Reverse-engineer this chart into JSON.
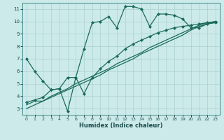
{
  "title": "",
  "xlabel": "Humidex (Indice chaleur)",
  "bg_color": "#cceaea",
  "grid_color": "#aacfcf",
  "line_color": "#1a6b5a",
  "xlim": [
    -0.5,
    23.5
  ],
  "ylim": [
    2.5,
    11.5
  ],
  "xticks": [
    0,
    1,
    2,
    3,
    4,
    5,
    6,
    7,
    8,
    9,
    10,
    11,
    12,
    13,
    14,
    15,
    16,
    17,
    18,
    19,
    20,
    21,
    22,
    23
  ],
  "yticks": [
    3,
    4,
    5,
    6,
    7,
    8,
    9,
    10,
    11
  ],
  "s1_x": [
    0,
    1,
    2,
    3,
    4,
    5,
    6,
    7,
    8,
    9,
    10,
    11,
    12,
    13,
    14,
    15,
    16,
    17,
    18,
    19,
    20,
    21,
    22,
    23
  ],
  "s1_y": [
    7.0,
    6.0,
    5.2,
    4.5,
    4.6,
    2.8,
    5.5,
    7.8,
    9.9,
    10.0,
    10.4,
    9.5,
    11.2,
    11.2,
    11.0,
    9.6,
    10.6,
    10.6,
    10.5,
    10.2,
    9.5,
    9.5,
    9.8,
    10.0
  ],
  "s2_x": [
    0,
    1,
    2,
    3,
    4,
    5,
    6,
    7,
    8,
    9,
    10,
    11,
    12,
    13,
    14,
    15,
    16,
    17,
    18,
    19,
    20,
    21,
    22,
    23
  ],
  "s2_y": [
    3.3,
    3.6,
    3.6,
    4.0,
    4.3,
    4.6,
    5.0,
    5.3,
    5.6,
    5.9,
    6.2,
    6.6,
    6.9,
    7.2,
    7.5,
    7.9,
    8.2,
    8.5,
    8.8,
    9.1,
    9.4,
    9.7,
    9.9,
    10.0
  ],
  "s3_x": [
    0,
    1,
    2,
    3,
    4,
    5,
    6,
    7,
    8,
    9,
    10,
    11,
    12,
    13,
    14,
    15,
    16,
    17,
    18,
    19,
    20,
    21,
    22,
    23
  ],
  "s3_y": [
    3.0,
    3.3,
    3.6,
    3.9,
    4.2,
    4.5,
    4.8,
    5.1,
    5.4,
    5.7,
    6.1,
    6.4,
    6.7,
    7.0,
    7.4,
    7.7,
    8.0,
    8.3,
    8.6,
    8.9,
    9.3,
    9.6,
    9.8,
    9.9
  ],
  "s4_x": [
    0,
    1,
    2,
    3,
    4,
    5,
    6,
    7,
    8,
    9,
    10,
    11,
    12,
    13,
    14,
    15,
    16,
    17,
    18,
    19,
    20,
    21,
    22,
    23
  ],
  "s4_y": [
    3.5,
    3.7,
    3.9,
    4.5,
    4.6,
    5.5,
    5.5,
    4.2,
    5.5,
    6.2,
    6.8,
    7.2,
    7.8,
    8.2,
    8.5,
    8.8,
    9.1,
    9.3,
    9.5,
    9.6,
    9.7,
    9.8,
    9.9,
    9.9
  ],
  "marker": "D",
  "ms": 2.0,
  "lw": 0.9
}
